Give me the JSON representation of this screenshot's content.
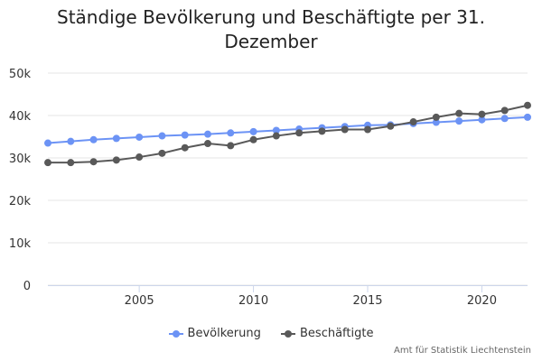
{
  "chart_data": {
    "type": "line",
    "title": "Ständige Bevölkerung und Beschäftigte per 31. Dezember",
    "xlabel": "",
    "ylabel": "",
    "x": [
      2001,
      2002,
      2003,
      2004,
      2005,
      2006,
      2007,
      2008,
      2009,
      2010,
      2011,
      2012,
      2013,
      2014,
      2015,
      2016,
      2017,
      2018,
      2019,
      2020,
      2021,
      2022
    ],
    "xlim": [
      2001,
      2022
    ],
    "ylim": [
      0,
      50000
    ],
    "x_ticks": [
      2005,
      2010,
      2015,
      2020
    ],
    "y_ticks": [
      0,
      10000,
      20000,
      30000,
      40000,
      50000
    ],
    "y_tick_labels": [
      "0",
      "10k",
      "20k",
      "30k",
      "40k",
      "50k"
    ],
    "grid": true,
    "legend_position": "bottom-center",
    "series": [
      {
        "name": "Bevölkerung",
        "color": "#6c93f5",
        "values": [
          33500,
          33900,
          34300,
          34600,
          34900,
          35200,
          35400,
          35600,
          35900,
          36200,
          36500,
          36800,
          37100,
          37400,
          37700,
          37800,
          38100,
          38400,
          38700,
          39000,
          39300,
          39600
        ]
      },
      {
        "name": "Beschäftigte",
        "color": "#595959",
        "values": [
          28900,
          28900,
          29100,
          29500,
          30200,
          31100,
          32400,
          33400,
          32900,
          34300,
          35200,
          35900,
          36300,
          36700,
          36700,
          37500,
          38500,
          39600,
          40500,
          40300,
          41200,
          42400
        ]
      }
    ]
  },
  "credits": "Amt für Statistik Liechtenstein"
}
